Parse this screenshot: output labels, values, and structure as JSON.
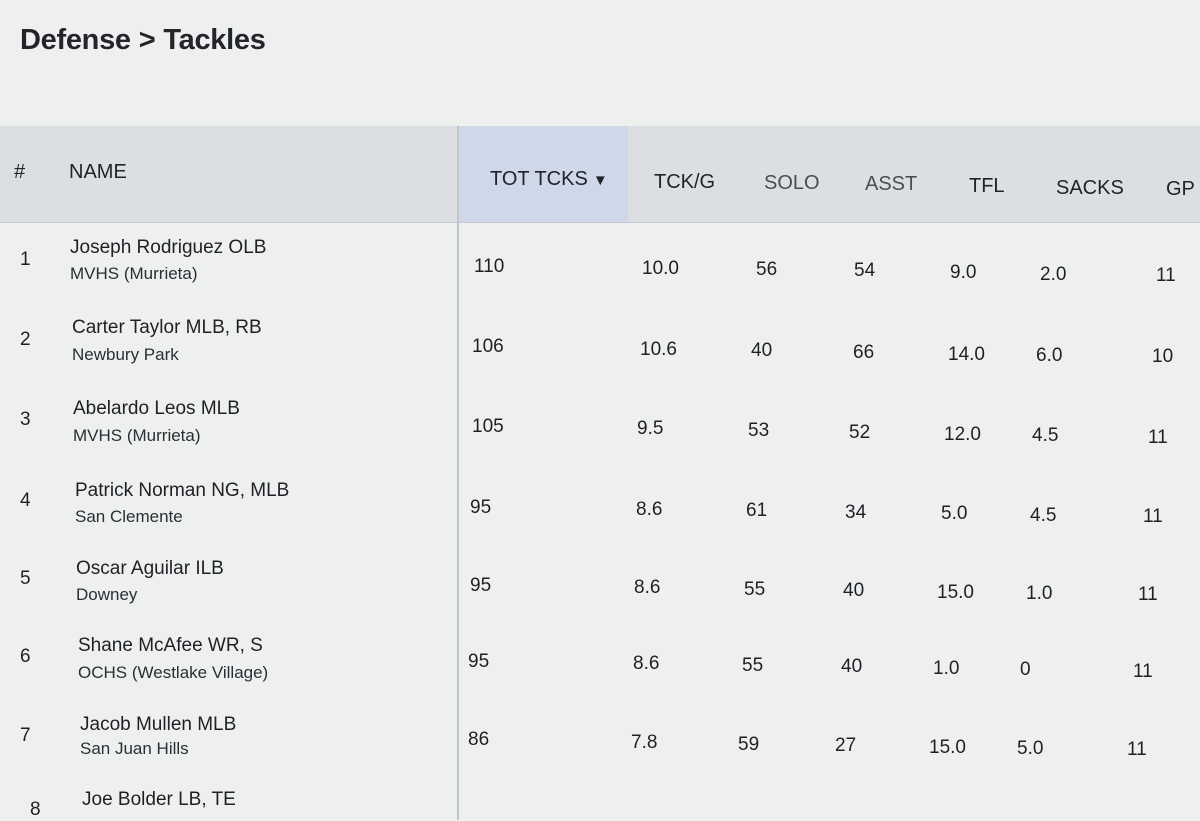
{
  "breadcrumb": {
    "section": "Defense",
    "separator": ">",
    "page": "Tackles"
  },
  "columns": {
    "rank": "#",
    "name": "NAME",
    "tot": "TOT TCKS",
    "tot_sort_icon": "▼",
    "tckg": "TCK/G",
    "solo": "SOLO",
    "asst": "ASST",
    "tfl": "TFL",
    "sacks": "SACKS",
    "gp": "GP"
  },
  "rows": [
    {
      "rank": "1",
      "name": "Joseph Rodriguez OLB",
      "school": "MVHS (Murrieta)",
      "tot": "110",
      "tckg": "10.0",
      "solo": "56",
      "asst": "54",
      "tfl": "9.0",
      "sacks": "2.0",
      "gp": "11"
    },
    {
      "rank": "2",
      "name": "Carter Taylor MLB, RB",
      "school": "Newbury Park",
      "tot": "106",
      "tckg": "10.6",
      "solo": "40",
      "asst": "66",
      "tfl": "14.0",
      "sacks": "6.0",
      "gp": "10"
    },
    {
      "rank": "3",
      "name": "Abelardo Leos MLB",
      "school": "MVHS (Murrieta)",
      "tot": "105",
      "tckg": "9.5",
      "solo": "53",
      "asst": "52",
      "tfl": "12.0",
      "sacks": "4.5",
      "gp": "11"
    },
    {
      "rank": "4",
      "name": "Patrick Norman NG, MLB",
      "school": "San Clemente",
      "tot": "95",
      "tckg": "8.6",
      "solo": "61",
      "asst": "34",
      "tfl": "5.0",
      "sacks": "4.5",
      "gp": "11"
    },
    {
      "rank": "5",
      "name": "Oscar Aguilar ILB",
      "school": "Downey",
      "tot": "95",
      "tckg": "8.6",
      "solo": "55",
      "asst": "40",
      "tfl": "15.0",
      "sacks": "1.0",
      "gp": "11"
    },
    {
      "rank": "6",
      "name": "Shane McAfee WR, S",
      "school": "OCHS (Westlake Village)",
      "tot": "95",
      "tckg": "8.6",
      "solo": "55",
      "asst": "40",
      "tfl": "1.0",
      "sacks": "0",
      "gp": "11"
    },
    {
      "rank": "7",
      "name": "Jacob Mullen MLB",
      "school": "San Juan Hills",
      "tot": "86",
      "tckg": "7.8",
      "solo": "59",
      "asst": "27",
      "tfl": "15.0",
      "sacks": "5.0",
      "gp": "11"
    },
    {
      "rank": "8",
      "name": "Joe Bolder LB, TE",
      "school": "",
      "tot": "",
      "tckg": "",
      "solo": "",
      "asst": "",
      "tfl": "",
      "sacks": "",
      "gp": ""
    }
  ]
}
